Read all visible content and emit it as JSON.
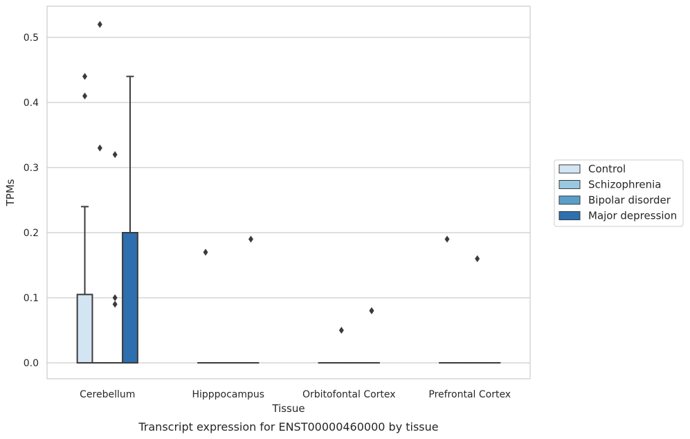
{
  "chart_data": {
    "type": "box",
    "title": "",
    "caption": "Transcript expression for ENST00000460000 by tissue",
    "xlabel": "Tissue",
    "ylabel": "TPMs",
    "ylim": [
      -0.025,
      0.55
    ],
    "yticks": [
      0.0,
      0.1,
      0.2,
      0.3,
      0.4,
      0.5
    ],
    "ytick_labels": [
      "0.0",
      "0.1",
      "0.2",
      "0.3",
      "0.4",
      "0.5"
    ],
    "grid": "horizontal",
    "legend_position": "right",
    "categories": [
      "Cerebellum",
      "Hipppocampus",
      "Orbitofontal Cortex",
      "Prefrontal Cortex"
    ],
    "series": [
      {
        "name": "Control",
        "color": "#d3e4f3",
        "boxes": [
          {
            "q1": 0.0,
            "median": 0.0,
            "q3": 0.105,
            "whisker_low": 0.0,
            "whisker_high": 0.24,
            "outliers": [
              0.41,
              0.44
            ]
          },
          {
            "q1": 0.0,
            "median": 0.0,
            "q3": 0.0,
            "whisker_low": 0.0,
            "whisker_high": 0.0,
            "outliers": [
              0.17
            ]
          },
          {
            "q1": 0.0,
            "median": 0.0,
            "q3": 0.0,
            "whisker_low": 0.0,
            "whisker_high": 0.0,
            "outliers": []
          },
          {
            "q1": 0.0,
            "median": 0.0,
            "q3": 0.0,
            "whisker_low": 0.0,
            "whisker_high": 0.0,
            "outliers": [
              0.19
            ]
          }
        ]
      },
      {
        "name": "Schizophrenia",
        "color": "#9ac8e0",
        "boxes": [
          {
            "q1": 0.0,
            "median": 0.0,
            "q3": 0.0,
            "whisker_low": 0.0,
            "whisker_high": 0.0,
            "outliers": [
              0.52,
              0.33
            ]
          },
          {
            "q1": 0.0,
            "median": 0.0,
            "q3": 0.0,
            "whisker_low": 0.0,
            "whisker_high": 0.0,
            "outliers": []
          },
          {
            "q1": 0.0,
            "median": 0.0,
            "q3": 0.0,
            "whisker_low": 0.0,
            "whisker_high": 0.0,
            "outliers": [
              0.05
            ]
          },
          {
            "q1": 0.0,
            "median": 0.0,
            "q3": 0.0,
            "whisker_low": 0.0,
            "whisker_high": 0.0,
            "outliers": []
          }
        ]
      },
      {
        "name": "Bipolar disorder",
        "color": "#5a9ec9",
        "boxes": [
          {
            "q1": 0.0,
            "median": 0.0,
            "q3": 0.0,
            "whisker_low": 0.0,
            "whisker_high": 0.0,
            "outliers": [
              0.32,
              0.1,
              0.09
            ]
          },
          {
            "q1": 0.0,
            "median": 0.0,
            "q3": 0.0,
            "whisker_low": 0.0,
            "whisker_high": 0.0,
            "outliers": []
          },
          {
            "q1": 0.0,
            "median": 0.0,
            "q3": 0.0,
            "whisker_low": 0.0,
            "whisker_high": 0.0,
            "outliers": []
          },
          {
            "q1": 0.0,
            "median": 0.0,
            "q3": 0.0,
            "whisker_low": 0.0,
            "whisker_high": 0.0,
            "outliers": [
              0.16
            ]
          }
        ]
      },
      {
        "name": "Major depression",
        "color": "#2d6faf",
        "boxes": [
          {
            "q1": 0.0,
            "median": 0.0,
            "q3": 0.2,
            "whisker_low": 0.0,
            "whisker_high": 0.44,
            "outliers": []
          },
          {
            "q1": 0.0,
            "median": 0.0,
            "q3": 0.0,
            "whisker_low": 0.0,
            "whisker_high": 0.0,
            "outliers": [
              0.19
            ]
          },
          {
            "q1": 0.0,
            "median": 0.0,
            "q3": 0.0,
            "whisker_low": 0.0,
            "whisker_high": 0.0,
            "outliers": [
              0.08,
              0.08
            ]
          },
          {
            "q1": 0.0,
            "median": 0.0,
            "q3": 0.0,
            "whisker_low": 0.0,
            "whisker_high": 0.0,
            "outliers": []
          }
        ]
      }
    ]
  }
}
